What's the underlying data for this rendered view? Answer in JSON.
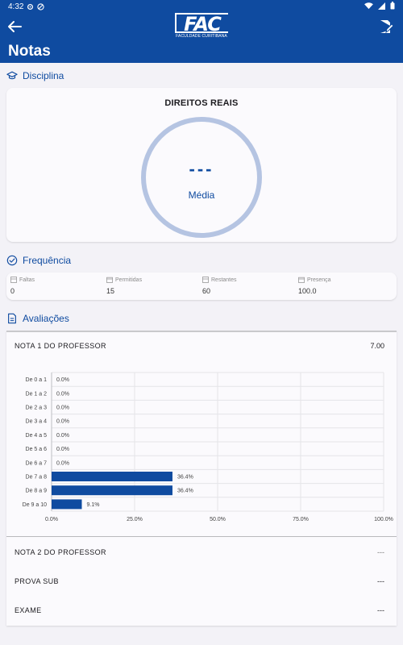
{
  "status_bar": {
    "time": "4:32"
  },
  "header": {
    "title": "Notas",
    "logo_text": "FAC",
    "logo_subtitle": "FACULDADE CURITIBANA"
  },
  "disciplina": {
    "section_title": "Disciplina",
    "name": "DIREITOS REAIS",
    "media_value": "---",
    "media_label": "Média"
  },
  "frequencia": {
    "section_title": "Frequência",
    "items": [
      {
        "label": "Faltas",
        "value": "0"
      },
      {
        "label": "Permitidas",
        "value": "15"
      },
      {
        "label": "Restantes",
        "value": "60"
      },
      {
        "label": "Presença",
        "value": "100.0"
      }
    ]
  },
  "avaliacoes": {
    "section_title": "Avaliações",
    "items": [
      {
        "label": "NOTA 1 DO PROFESSOR",
        "value": "7.00"
      },
      {
        "label": "NOTA 2 DO PROFESSOR",
        "value": "---"
      },
      {
        "label": "PROVA SUB",
        "value": "---"
      },
      {
        "label": "EXAME",
        "value": "---"
      }
    ]
  },
  "chart_data": {
    "type": "bar",
    "orientation": "horizontal",
    "categories": [
      "De 0 a 1",
      "De 1 a 2",
      "De 2 a 3",
      "De 3 a 4",
      "De 4 a 5",
      "De 5 a 6",
      "De 6 a 7",
      "De 7 a 8",
      "De 8 a 9",
      "De 9 a 10"
    ],
    "values": [
      0.0,
      0.0,
      0.0,
      0.0,
      0.0,
      0.0,
      0.0,
      36.4,
      36.4,
      9.1
    ],
    "value_labels": [
      "0.0%",
      "0.0%",
      "0.0%",
      "0.0%",
      "0.0%",
      "0.0%",
      "0.0%",
      "36.4%",
      "36.4%",
      "9.1%"
    ],
    "xlim": [
      0,
      100
    ],
    "x_ticks": [
      "0.0%",
      "25.0%",
      "50.0%",
      "75.0%",
      "100.0%"
    ],
    "grid": true,
    "bar_color": "#0f4ba0"
  },
  "colors": {
    "primary": "#0f4ba0",
    "ring": "#b5c4e2",
    "background": "#f3f2f7"
  }
}
